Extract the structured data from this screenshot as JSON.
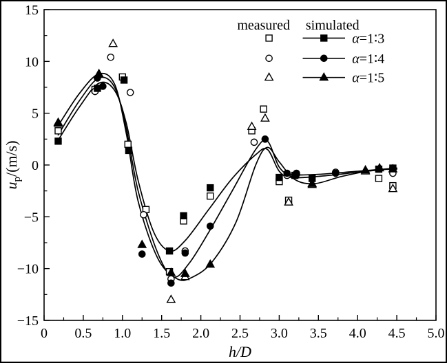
{
  "figure": {
    "background": "#ffffff",
    "border_color": "#000000",
    "line_color": "#000000"
  },
  "chart_data": {
    "type": "scatter",
    "title": "",
    "xlabel": "h/D",
    "ylabel": {
      "var": "u",
      "sub": "p",
      "unit": "/(m/s)"
    },
    "xlim": [
      0,
      5
    ],
    "ylim": [
      -15,
      15
    ],
    "grid": false,
    "xticks": [
      0,
      0.5,
      1.0,
      1.5,
      2.0,
      2.5,
      3.0,
      3.5,
      4.0,
      4.5,
      5.0
    ],
    "xtick_labels": [
      "0",
      "0.5",
      "1.0",
      "1.5",
      "2.0",
      "2.5",
      "3.0",
      "3.5",
      "4.0",
      "4.5",
      "5.0"
    ],
    "yticks": [
      -15,
      -10,
      -5,
      0,
      5,
      10,
      15
    ],
    "ytick_labels": [
      "−15",
      "−10",
      "−5",
      "0",
      "5",
      "10",
      "15"
    ],
    "x_minor_step": 0.25,
    "y_minor_step": 2.5,
    "legend": {
      "position": "top-right-inside",
      "measured_header": "measured",
      "simulated_header": "simulated",
      "entries": [
        {
          "label": "α=1∶3",
          "marker": "square"
        },
        {
          "label": "α=1∶4",
          "marker": "circle"
        },
        {
          "label": "α=1∶5",
          "marker": "triangle"
        }
      ]
    },
    "series": [
      {
        "id": "measured-1-3",
        "kind": "measured",
        "marker": "square",
        "filled": false,
        "line": false,
        "points": [
          [
            0.18,
            3.3
          ],
          [
            0.65,
            7.3
          ],
          [
            1.0,
            8.5
          ],
          [
            1.07,
            2.0
          ],
          [
            1.3,
            -4.3
          ],
          [
            1.6,
            -10.3
          ],
          [
            1.78,
            -5.4
          ],
          [
            2.12,
            -3.0
          ],
          [
            2.65,
            3.3
          ],
          [
            2.8,
            5.4
          ],
          [
            3.0,
            -1.6
          ],
          [
            3.12,
            -3.4
          ],
          [
            4.27,
            -1.3
          ],
          [
            4.45,
            -2.0
          ]
        ]
      },
      {
        "id": "measured-1-4",
        "kind": "measured",
        "marker": "circle",
        "filled": false,
        "line": false,
        "points": [
          [
            0.65,
            7.1
          ],
          [
            0.85,
            10.4
          ],
          [
            1.1,
            7.0
          ],
          [
            1.27,
            -4.8
          ],
          [
            1.62,
            -11.0
          ],
          [
            1.8,
            -8.3
          ],
          [
            2.68,
            2.2
          ],
          [
            3.1,
            -1.0
          ],
          [
            3.22,
            -0.9
          ],
          [
            3.72,
            -0.7
          ],
          [
            4.45,
            -0.8
          ]
        ]
      },
      {
        "id": "measured-1-5",
        "kind": "measured",
        "marker": "triangle",
        "filled": false,
        "line": false,
        "points": [
          [
            0.18,
            4.1
          ],
          [
            0.88,
            11.7
          ],
          [
            1.62,
            -13.0
          ],
          [
            1.8,
            -10.8
          ],
          [
            2.65,
            3.7
          ],
          [
            2.82,
            4.5
          ],
          [
            3.12,
            -3.6
          ],
          [
            3.42,
            -1.9
          ],
          [
            4.1,
            -0.6
          ],
          [
            4.45,
            -2.3
          ]
        ]
      },
      {
        "id": "simulated-1-3",
        "kind": "simulated",
        "marker": "square",
        "filled": true,
        "line": true,
        "points": [
          [
            0.18,
            2.3
          ],
          [
            0.68,
            7.4
          ],
          [
            1.02,
            8.2
          ],
          [
            1.08,
            1.4
          ],
          [
            1.6,
            -8.3
          ],
          [
            1.78,
            -4.9
          ],
          [
            2.12,
            -2.2
          ],
          [
            3.0,
            -1.2
          ],
          [
            3.2,
            -1.0
          ],
          [
            3.42,
            -1.3
          ],
          [
            4.27,
            -0.4
          ],
          [
            4.45,
            -0.3
          ]
        ],
        "line_points": [
          [
            0.18,
            2.4
          ],
          [
            0.45,
            5.6
          ],
          [
            0.7,
            7.9
          ],
          [
            0.9,
            7.2
          ],
          [
            1.05,
            4.0
          ],
          [
            1.2,
            -1.5
          ],
          [
            1.4,
            -6.5
          ],
          [
            1.6,
            -8.3
          ],
          [
            1.8,
            -7.3
          ],
          [
            2.1,
            -4.3
          ],
          [
            2.4,
            -1.3
          ],
          [
            2.7,
            1.0
          ],
          [
            2.85,
            1.5
          ],
          [
            3.0,
            -0.6
          ],
          [
            3.15,
            -1.2
          ],
          [
            3.5,
            -1.1
          ],
          [
            4.0,
            -0.7
          ],
          [
            4.5,
            -0.3
          ]
        ]
      },
      {
        "id": "simulated-1-4",
        "kind": "simulated",
        "marker": "circle",
        "filled": true,
        "line": true,
        "points": [
          [
            0.68,
            8.4
          ],
          [
            0.75,
            7.6
          ],
          [
            1.25,
            -8.6
          ],
          [
            1.62,
            -11.4
          ],
          [
            1.8,
            -8.5
          ],
          [
            2.12,
            -5.9
          ],
          [
            2.82,
            2.5
          ],
          [
            3.1,
            -0.8
          ],
          [
            3.22,
            -0.8
          ],
          [
            3.72,
            -0.8
          ],
          [
            4.45,
            -0.3
          ]
        ],
        "line_points": [
          [
            0.18,
            2.9
          ],
          [
            0.45,
            6.2
          ],
          [
            0.7,
            8.4
          ],
          [
            0.9,
            7.5
          ],
          [
            1.05,
            3.5
          ],
          [
            1.2,
            -2.5
          ],
          [
            1.45,
            -8.5
          ],
          [
            1.65,
            -10.8
          ],
          [
            1.85,
            -9.5
          ],
          [
            2.1,
            -6.5
          ],
          [
            2.4,
            -2.5
          ],
          [
            2.7,
            1.5
          ],
          [
            2.85,
            2.3
          ],
          [
            3.0,
            -0.2
          ],
          [
            3.15,
            -0.9
          ],
          [
            3.5,
            -0.9
          ],
          [
            4.0,
            -0.6
          ],
          [
            4.5,
            -0.3
          ]
        ]
      },
      {
        "id": "simulated-1-5",
        "kind": "simulated",
        "marker": "triangle",
        "filled": true,
        "line": true,
        "points": [
          [
            0.18,
            4.0
          ],
          [
            0.7,
            8.8
          ],
          [
            1.25,
            -7.7
          ],
          [
            1.62,
            -10.4
          ],
          [
            1.8,
            -10.5
          ],
          [
            2.12,
            -9.6
          ],
          [
            3.42,
            -1.8
          ],
          [
            4.1,
            -0.5
          ],
          [
            4.28,
            -0.3
          ],
          [
            4.45,
            -0.4
          ]
        ],
        "line_points": [
          [
            0.18,
            3.8
          ],
          [
            0.45,
            6.9
          ],
          [
            0.7,
            8.8
          ],
          [
            0.9,
            7.8
          ],
          [
            1.05,
            3.0
          ],
          [
            1.2,
            -3.5
          ],
          [
            1.45,
            -9.0
          ],
          [
            1.7,
            -11.0
          ],
          [
            1.9,
            -10.8
          ],
          [
            2.15,
            -9.3
          ],
          [
            2.45,
            -5.5
          ],
          [
            2.7,
            0.0
          ],
          [
            2.85,
            1.7
          ],
          [
            3.0,
            0.3
          ],
          [
            3.2,
            -1.4
          ],
          [
            3.45,
            -1.8
          ],
          [
            3.8,
            -1.1
          ],
          [
            4.2,
            -0.5
          ],
          [
            4.5,
            -0.4
          ]
        ]
      }
    ]
  }
}
